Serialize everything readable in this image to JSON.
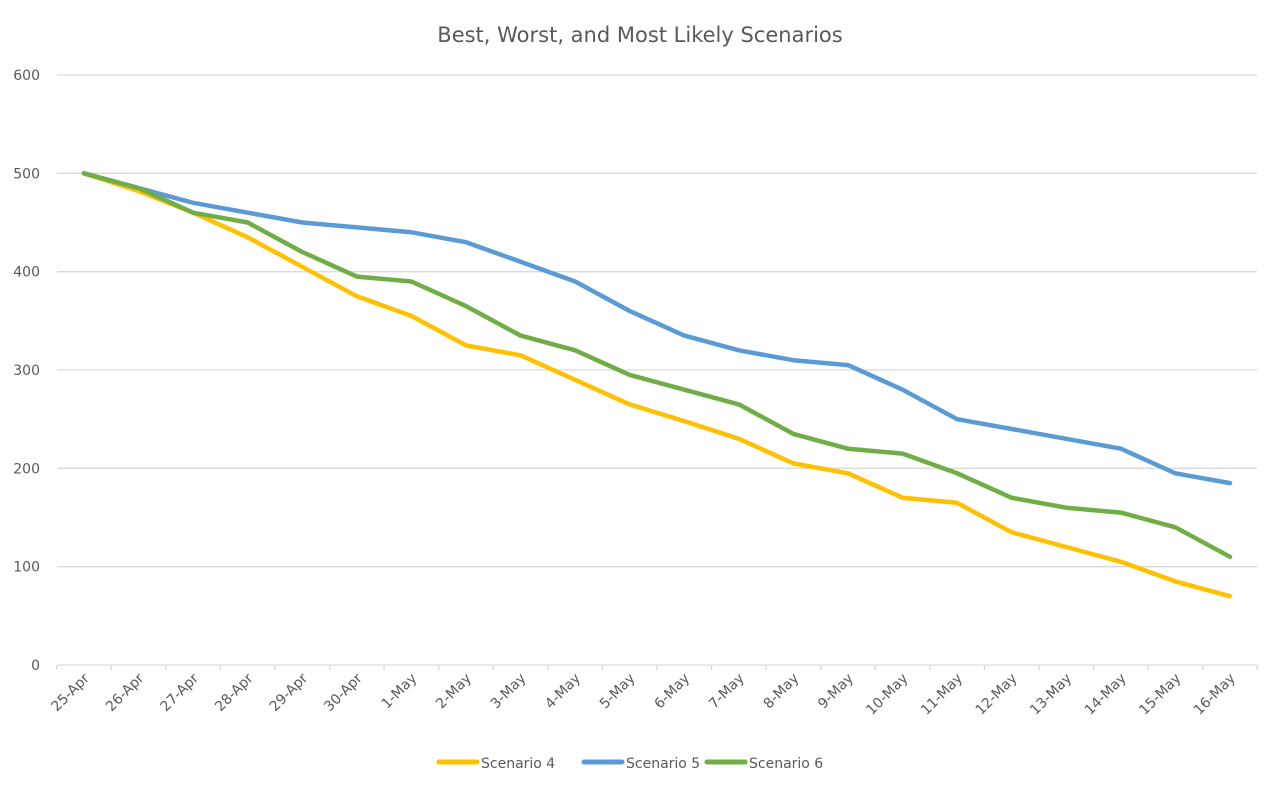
{
  "chart_data": {
    "type": "line",
    "title": "Best, Worst, and Most Likely Scenarios",
    "xlabel": "",
    "ylabel": "",
    "ylim": [
      0,
      600
    ],
    "yticks": [
      0,
      100,
      200,
      300,
      400,
      500,
      600
    ],
    "grid": true,
    "legend_position": "bottom",
    "categories": [
      "25-Apr",
      "26-Apr",
      "27-Apr",
      "28-Apr",
      "29-Apr",
      "30-Apr",
      "1-May",
      "2-May",
      "3-May",
      "4-May",
      "5-May",
      "6-May",
      "7-May",
      "8-May",
      "9-May",
      "10-May",
      "11-May",
      "12-May",
      "13-May",
      "14-May",
      "15-May",
      "16-May"
    ],
    "series": [
      {
        "name": "Scenario 4",
        "color": "#FFC000",
        "values": [
          500,
          482,
          460,
          435,
          405,
          375,
          355,
          325,
          315,
          290,
          265,
          248,
          230,
          205,
          195,
          170,
          165,
          135,
          120,
          105,
          85,
          70
        ]
      },
      {
        "name": "Scenario 5",
        "color": "#5B9BD5",
        "values": [
          500,
          485,
          470,
          460,
          450,
          445,
          440,
          430,
          410,
          390,
          360,
          335,
          320,
          310,
          305,
          280,
          250,
          240,
          230,
          220,
          195,
          185
        ]
      },
      {
        "name": "Scenario 6",
        "color": "#70AD47",
        "values": [
          500,
          485,
          460,
          450,
          420,
          395,
          390,
          365,
          335,
          320,
          295,
          280,
          265,
          235,
          220,
          215,
          195,
          170,
          160,
          155,
          140,
          110
        ]
      }
    ]
  },
  "colors": {
    "gridline": "#D9D9D9",
    "axis": "#D9D9D9",
    "text": "#595959"
  }
}
